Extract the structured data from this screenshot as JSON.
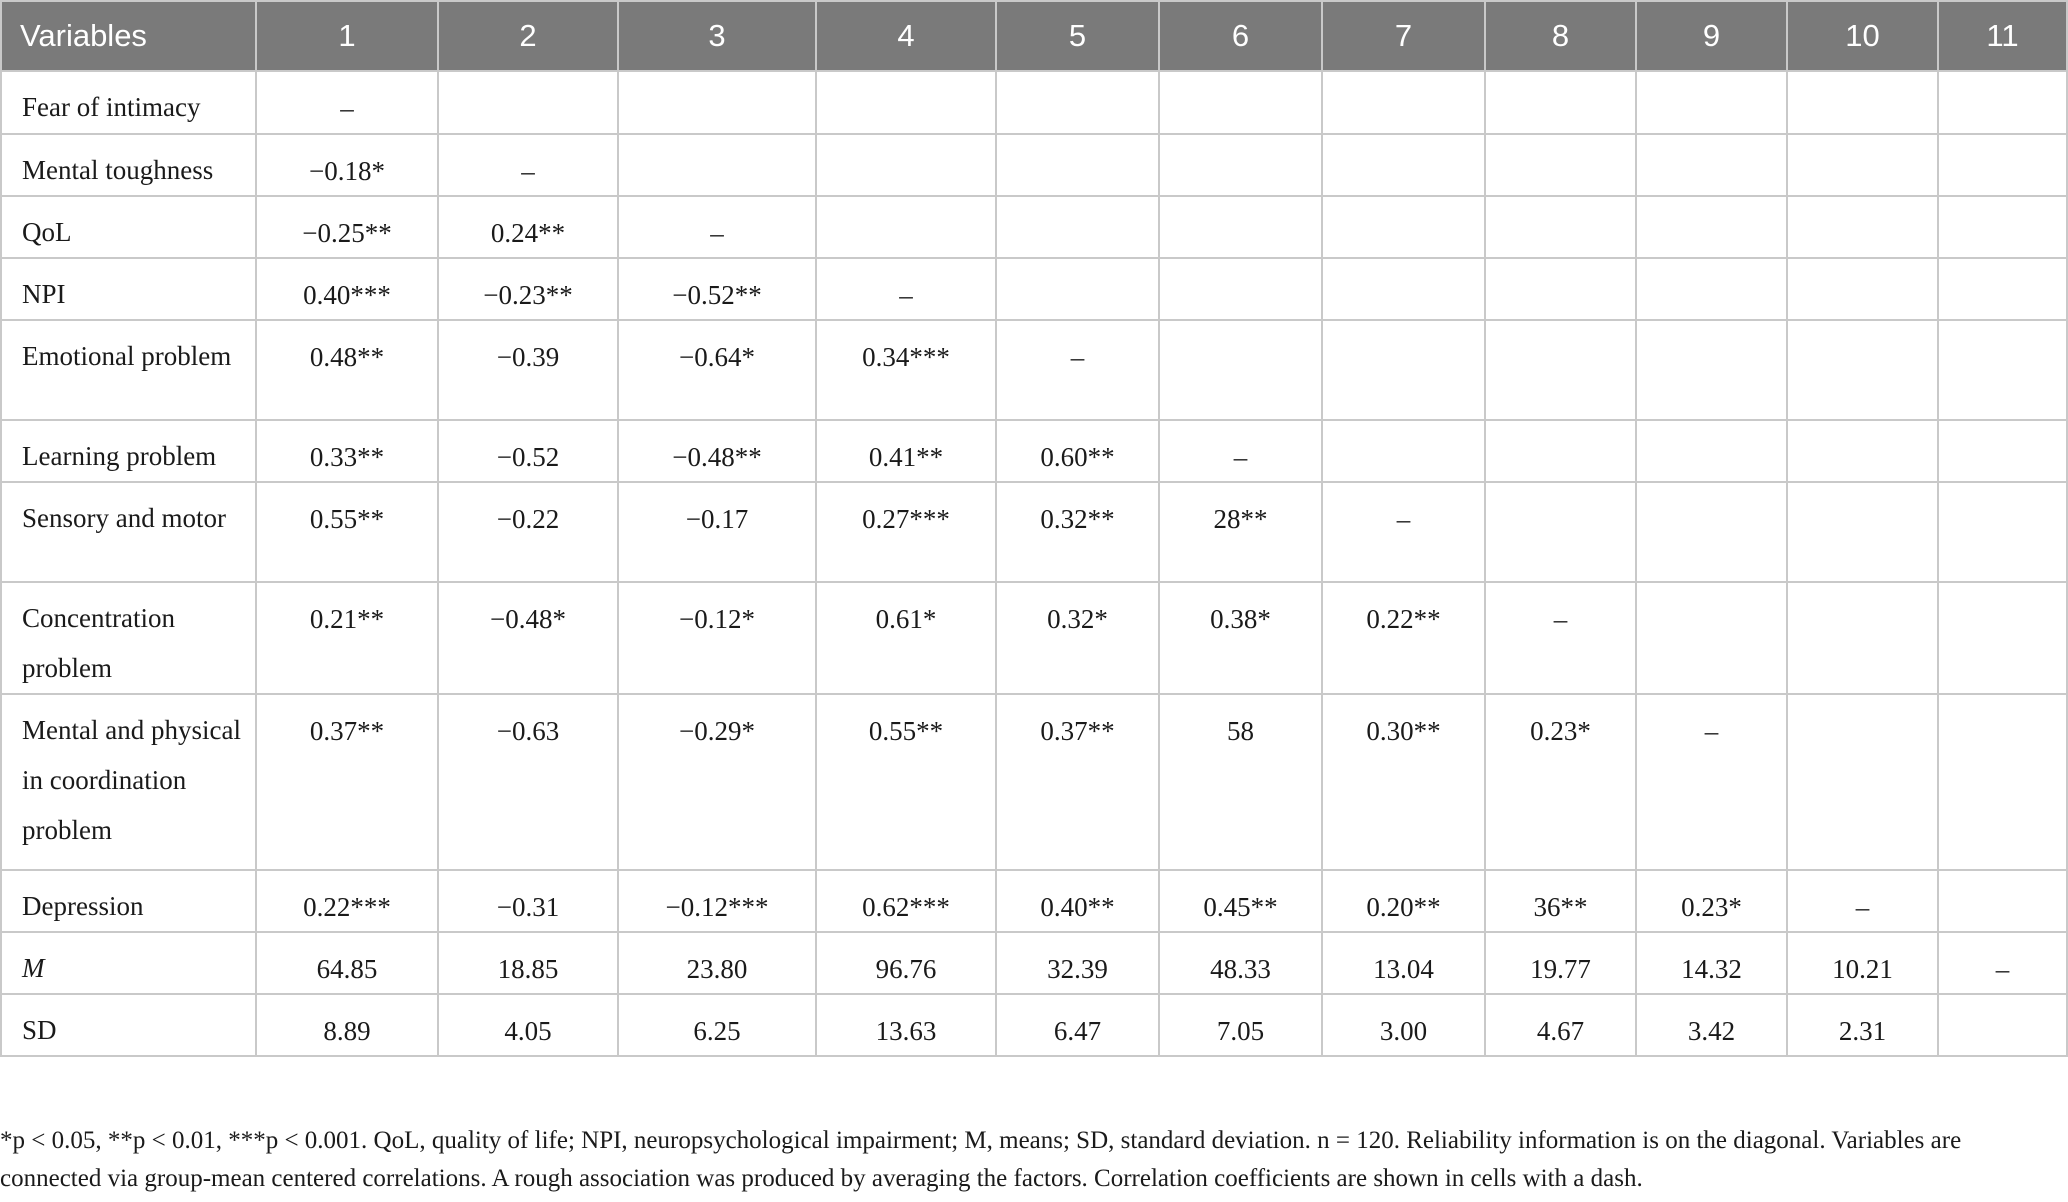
{
  "table": {
    "headers": [
      "Variables",
      "1",
      "2",
      "3",
      "4",
      "5",
      "6",
      "7",
      "8",
      "9",
      "10",
      "11"
    ],
    "rows": [
      {
        "label": "Fear of intimacy",
        "cells": [
          "–",
          "",
          "",
          "",
          "",
          "",
          "",
          "",
          "",
          "",
          ""
        ]
      },
      {
        "label": "Mental toughness",
        "cells": [
          "−0.18*",
          "–",
          "",
          "",
          "",
          "",
          "",
          "",
          "",
          "",
          ""
        ]
      },
      {
        "label": "QoL",
        "cells": [
          "−0.25**",
          "0.24**",
          "–",
          "",
          "",
          "",
          "",
          "",
          "",
          "",
          ""
        ]
      },
      {
        "label": "NPI",
        "cells": [
          "0.40***",
          "−0.23**",
          "−0.52**",
          "–",
          "",
          "",
          "",
          "",
          "",
          "",
          ""
        ]
      },
      {
        "label": "Emotional problem",
        "cells": [
          "0.48**",
          "−0.39",
          "−0.64*",
          "0.34***",
          "–",
          "",
          "",
          "",
          "",
          "",
          ""
        ]
      },
      {
        "label": "Learning problem",
        "cells": [
          "0.33**",
          "−0.52",
          "−0.48**",
          "0.41**",
          "0.60**",
          "–",
          "",
          "",
          "",
          "",
          ""
        ]
      },
      {
        "label": "Sensory and motor",
        "cells": [
          "0.55**",
          "−0.22",
          "−0.17",
          "0.27***",
          "0.32**",
          "28**",
          "–",
          "",
          "",
          "",
          ""
        ]
      },
      {
        "label": "Concentration problem",
        "cells": [
          "0.21**",
          "−0.48*",
          "−0.12*",
          "0.61*",
          "0.32*",
          "0.38*",
          "0.22**",
          "–",
          "",
          "",
          ""
        ]
      },
      {
        "label": "Mental and physical in coordination problem",
        "cells": [
          "0.37**",
          "−0.63",
          "−0.29*",
          "0.55**",
          "0.37**",
          "58",
          "0.30**",
          "0.23*",
          "–",
          "",
          ""
        ]
      },
      {
        "label": "Depression",
        "cells": [
          "0.22***",
          "−0.31",
          "−0.12***",
          "0.62***",
          "0.40**",
          "0.45**",
          "0.20**",
          "36**",
          "0.23*",
          "–",
          ""
        ]
      },
      {
        "label": "M",
        "cells": [
          "64.85",
          "18.85",
          "23.80",
          "96.76",
          "32.39",
          "48.33",
          "13.04",
          "19.77",
          "14.32",
          "10.21",
          "–"
        ]
      },
      {
        "label": "SD",
        "cells": [
          "8.89",
          "4.05",
          "6.25",
          "13.63",
          "6.47",
          "7.05",
          "3.00",
          "4.67",
          "3.42",
          "2.31",
          ""
        ]
      }
    ]
  },
  "footnote": {
    "line1": "*p < 0.05, **p < 0.01, ***p < 0.001. QoL, quality of life; NPI, neuropsychological impairment; M, means; SD, standard deviation. n = 120. Reliability information is on the diagonal. Variables are",
    "line2": "connected via group-mean centered correlations. A rough association was produced by averaging the factors. Correlation coefficients are shown in cells with a dash."
  }
}
